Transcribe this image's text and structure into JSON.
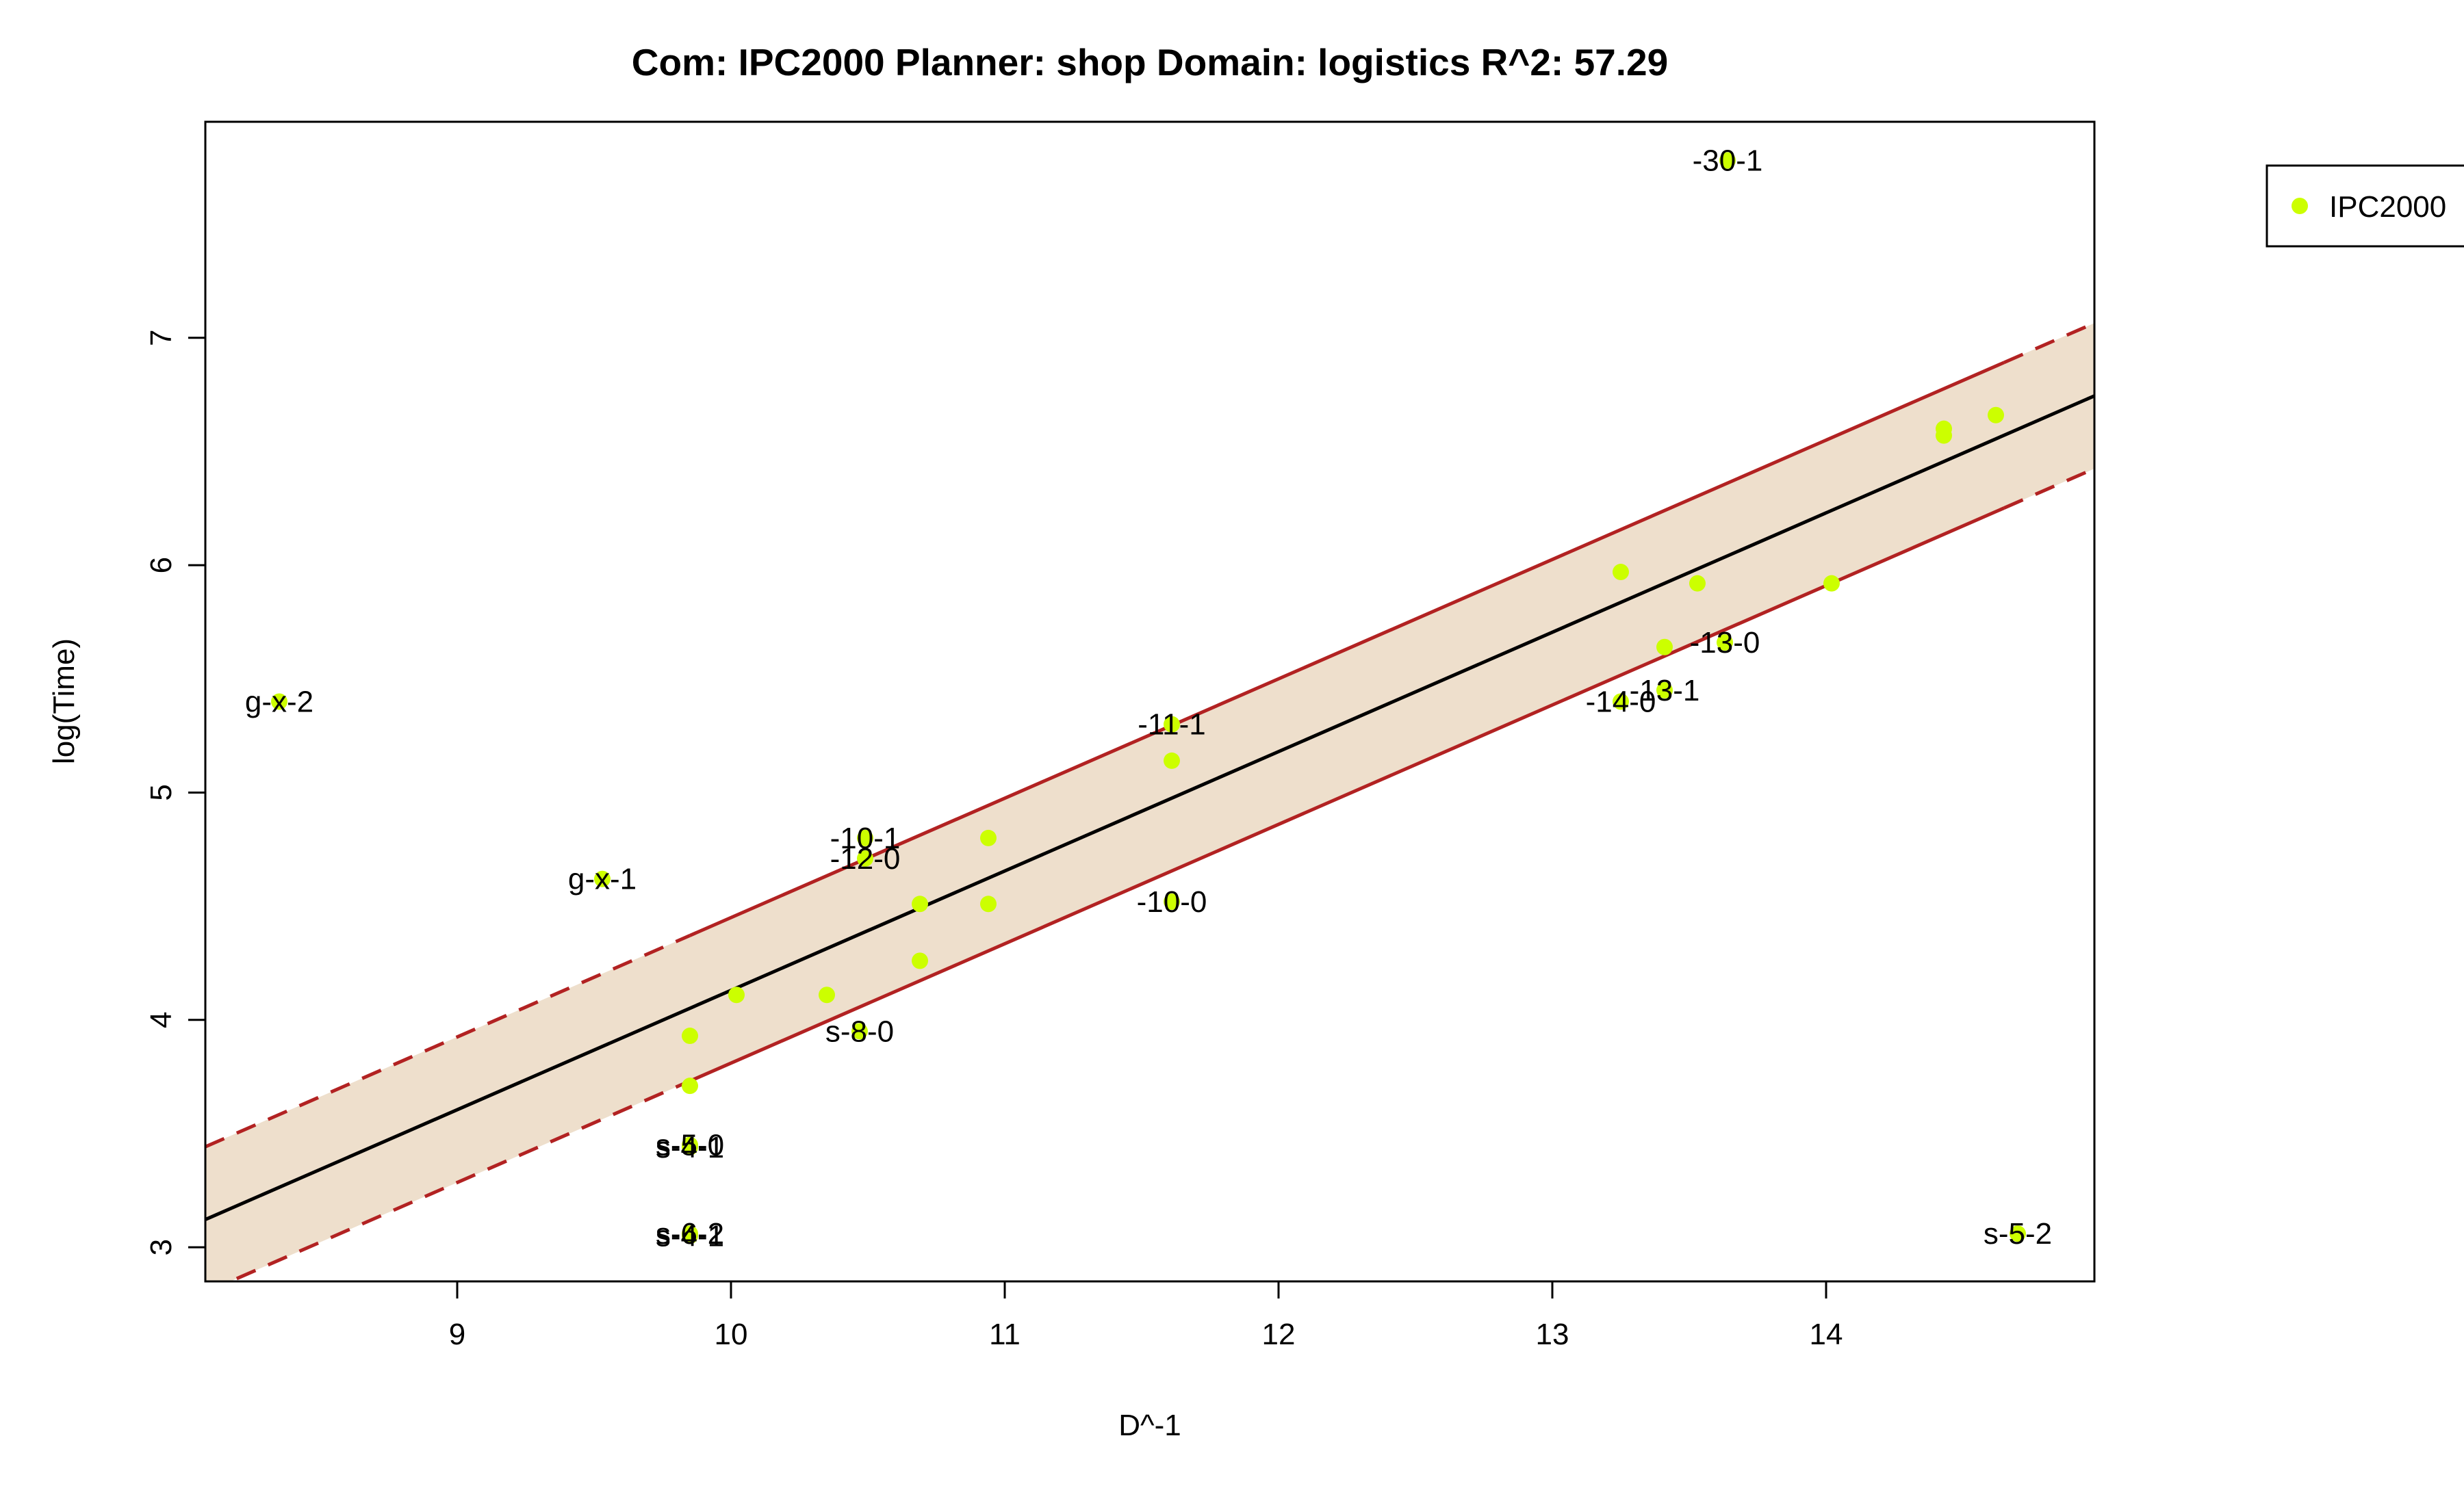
{
  "chart_data": {
    "type": "scatter",
    "title": "Com: IPC2000 Planner: shop Domain: logistics R^2: 57.29",
    "xlabel": "D^-1",
    "ylabel": "log(Time)",
    "xlim": [
      8.08,
      14.98
    ],
    "ylim": [
      2.85,
      7.95
    ],
    "x_ticks": [
      9,
      10,
      11,
      12,
      13,
      14
    ],
    "y_ticks": [
      3,
      4,
      5,
      6,
      7
    ],
    "grid": false,
    "legend": {
      "position": "top-right",
      "entries": [
        "IPC2000"
      ]
    },
    "colors": {
      "points": "#ccff00",
      "fit_line": "#000000",
      "band_fill": "#eedfcc",
      "band_line": "#b22222",
      "frame": "#000000"
    },
    "fit": {
      "slope": 0.525,
      "intercept": -1.12,
      "band_halfwidth": 0.32,
      "solid_x_range": [
        9.85,
        14.65
      ]
    },
    "series": [
      {
        "name": "IPC2000",
        "points": [
          {
            "x": 8.35,
            "y": 5.4,
            "label": "g-x-2"
          },
          {
            "x": 9.53,
            "y": 4.62,
            "label": "g-x-1"
          },
          {
            "x": 9.85,
            "y": 3.93,
            "label": ""
          },
          {
            "x": 9.85,
            "y": 3.71,
            "label": ""
          },
          {
            "x": 9.85,
            "y": 3.45,
            "label": "s-5-0"
          },
          {
            "x": 9.85,
            "y": 3.44,
            "label": "s-4-1"
          },
          {
            "x": 9.85,
            "y": 3.06,
            "label": "s-6-2"
          },
          {
            "x": 9.85,
            "y": 3.05,
            "label": "s-4-1"
          },
          {
            "x": 10.02,
            "y": 4.11,
            "label": ""
          },
          {
            "x": 10.35,
            "y": 4.11,
            "label": ""
          },
          {
            "x": 10.47,
            "y": 3.95,
            "label": "s-8-0"
          },
          {
            "x": 10.49,
            "y": 4.8,
            "label": "-10-1"
          },
          {
            "x": 10.49,
            "y": 4.71,
            "label": "-12-0"
          },
          {
            "x": 10.69,
            "y": 4.51,
            "label": ""
          },
          {
            "x": 10.69,
            "y": 4.26,
            "label": ""
          },
          {
            "x": 10.94,
            "y": 4.8,
            "label": ""
          },
          {
            "x": 10.94,
            "y": 4.51,
            "label": ""
          },
          {
            "x": 11.61,
            "y": 5.3,
            "label": "-11-1"
          },
          {
            "x": 11.61,
            "y": 5.14,
            "label": ""
          },
          {
            "x": 11.61,
            "y": 4.52,
            "label": "-10-0"
          },
          {
            "x": 13.25,
            "y": 5.97,
            "label": ""
          },
          {
            "x": 13.25,
            "y": 5.4,
            "label": "-14-0"
          },
          {
            "x": 13.41,
            "y": 5.64,
            "label": ""
          },
          {
            "x": 13.41,
            "y": 5.45,
            "label": "-13-1"
          },
          {
            "x": 13.53,
            "y": 5.92,
            "label": ""
          },
          {
            "x": 13.63,
            "y": 5.66,
            "label": "-13-0"
          },
          {
            "x": 13.64,
            "y": 7.78,
            "label": "-30-1"
          },
          {
            "x": 14.02,
            "y": 5.92,
            "label": ""
          },
          {
            "x": 14.43,
            "y": 6.6,
            "label": ""
          },
          {
            "x": 14.43,
            "y": 6.57,
            "label": ""
          },
          {
            "x": 14.62,
            "y": 6.66,
            "label": ""
          },
          {
            "x": 14.7,
            "y": 3.06,
            "label": "s-5-2"
          }
        ]
      }
    ]
  }
}
